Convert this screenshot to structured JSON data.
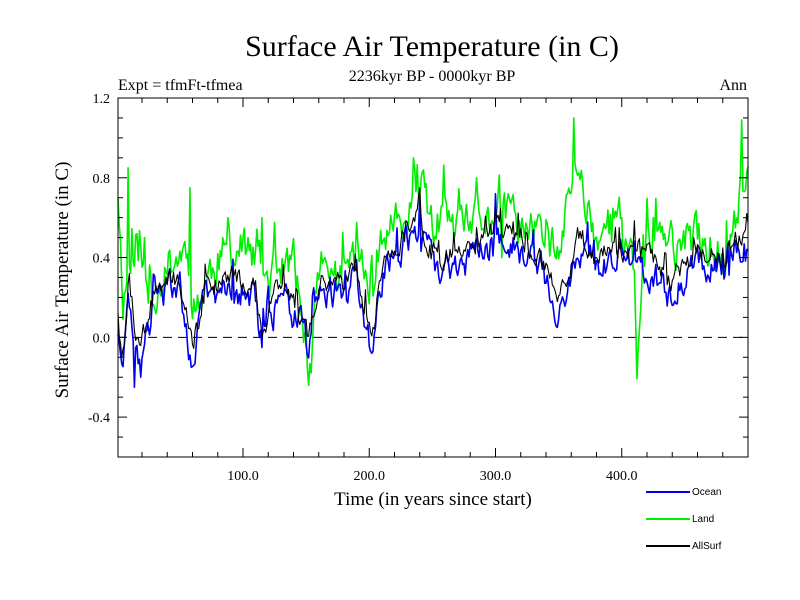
{
  "chart_data": {
    "type": "line",
    "title": "Surface Air Temperature (in C)",
    "subtitle": "2236kyr BP - 0000kyr BP",
    "left_label": "Expt = tfmFt-tfmea",
    "right_label": "Ann",
    "xlabel": "Time (in years since start)",
    "ylabel": "Surface Air Temperature (in C)",
    "xlim": [
      1,
      500
    ],
    "ylim": [
      -0.6,
      1.2
    ],
    "x_ticks": [
      100,
      200,
      300,
      400
    ],
    "x_tick_labels": [
      "100.0",
      "200.0",
      "300.0",
      "400.0"
    ],
    "y_ticks": [
      -0.4,
      0.0,
      0.4,
      0.8,
      1.2
    ],
    "y_tick_labels": [
      "-0.4",
      "0.0",
      "0.4",
      "0.8",
      "1.2"
    ],
    "reference_line": {
      "value": 0.0,
      "style": "dashed"
    },
    "legend_position": "bottom-right",
    "n_points": 500,
    "series": [
      {
        "name": "Land",
        "color": "#00ee00",
        "keypoints": [
          [
            1,
            0.75
          ],
          [
            5,
            0.2
          ],
          [
            15,
            0.5
          ],
          [
            25,
            0.2
          ],
          [
            40,
            0.35
          ],
          [
            55,
            0.45
          ],
          [
            62,
            0.15
          ],
          [
            80,
            0.4
          ],
          [
            100,
            0.45
          ],
          [
            120,
            0.3
          ],
          [
            140,
            0.38
          ],
          [
            150,
            -0.05
          ],
          [
            152,
            -0.3
          ],
          [
            160,
            0.35
          ],
          [
            180,
            0.3
          ],
          [
            190,
            0.45
          ],
          [
            200,
            0.2
          ],
          [
            205,
            0.4
          ],
          [
            220,
            0.6
          ],
          [
            230,
            0.55
          ],
          [
            240,
            0.75
          ],
          [
            250,
            0.55
          ],
          [
            260,
            0.6
          ],
          [
            270,
            0.5
          ],
          [
            280,
            0.55
          ],
          [
            300,
            0.62
          ],
          [
            320,
            0.58
          ],
          [
            340,
            0.5
          ],
          [
            350,
            0.38
          ],
          [
            363,
            0.9
          ],
          [
            380,
            0.5
          ],
          [
            395,
            0.6
          ],
          [
            410,
            0.3
          ],
          [
            412,
            -0.12
          ],
          [
            420,
            0.55
          ],
          [
            440,
            0.45
          ],
          [
            460,
            0.5
          ],
          [
            480,
            0.4
          ],
          [
            490,
            0.6
          ],
          [
            500,
            0.85
          ]
        ],
        "spikes": [
          [
            9,
            0.85
          ],
          [
            22,
            0.5
          ],
          [
            38,
            0.35
          ],
          [
            58,
            0.75
          ],
          [
            88,
            0.6
          ],
          [
            115,
            0.6
          ],
          [
            165,
            0.4
          ],
          [
            235,
            0.9
          ],
          [
            265,
            0.58
          ],
          [
            285,
            0.8
          ],
          [
            305,
            0.4
          ],
          [
            330,
            0.45
          ],
          [
            345,
            0.55
          ],
          [
            362,
            1.1
          ],
          [
            400,
            0.6
          ],
          [
            425,
            0.6
          ],
          [
            470,
            0.5
          ],
          [
            495,
            1.09
          ]
        ],
        "noise": 0.13,
        "seed": 11
      },
      {
        "name": "Ocean",
        "color": "#0000ee",
        "keypoints": [
          [
            1,
            0.05
          ],
          [
            4,
            -0.2
          ],
          [
            10,
            0.1
          ],
          [
            18,
            -0.2
          ],
          [
            30,
            0.2
          ],
          [
            50,
            0.25
          ],
          [
            60,
            -0.12
          ],
          [
            70,
            0.2
          ],
          [
            90,
            0.25
          ],
          [
            110,
            0.2
          ],
          [
            115,
            -0.05
          ],
          [
            130,
            0.2
          ],
          [
            150,
            0.05
          ],
          [
            151,
            -0.03
          ],
          [
            160,
            0.25
          ],
          [
            180,
            0.22
          ],
          [
            190,
            0.3
          ],
          [
            195,
            0.1
          ],
          [
            202,
            -0.05
          ],
          [
            210,
            0.3
          ],
          [
            220,
            0.4
          ],
          [
            240,
            0.55
          ],
          [
            250,
            0.35
          ],
          [
            260,
            0.35
          ],
          [
            280,
            0.4
          ],
          [
            300,
            0.5
          ],
          [
            320,
            0.45
          ],
          [
            340,
            0.3
          ],
          [
            349,
            0.08
          ],
          [
            365,
            0.45
          ],
          [
            380,
            0.35
          ],
          [
            400,
            0.4
          ],
          [
            420,
            0.35
          ],
          [
            440,
            0.2
          ],
          [
            460,
            0.4
          ],
          [
            480,
            0.35
          ],
          [
            500,
            0.5
          ]
        ],
        "spikes": [
          [
            14,
            -0.25
          ],
          [
            61,
            -0.14
          ],
          [
            150,
            -0.04
          ],
          [
            202,
            -0.08
          ],
          [
            240,
            0.72
          ],
          [
            300,
            0.72
          ],
          [
            349,
            0.05
          ]
        ],
        "noise": 0.1,
        "seed": 29
      },
      {
        "name": "AllSurf",
        "color": "#000000",
        "keypoints": [
          [
            1,
            0.15
          ],
          [
            4,
            -0.1
          ],
          [
            10,
            0.2
          ],
          [
            18,
            -0.1
          ],
          [
            30,
            0.25
          ],
          [
            50,
            0.3
          ],
          [
            60,
            -0.05
          ],
          [
            70,
            0.25
          ],
          [
            90,
            0.3
          ],
          [
            110,
            0.28
          ],
          [
            115,
            0.02
          ],
          [
            130,
            0.28
          ],
          [
            150,
            0.1
          ],
          [
            151,
            0.0
          ],
          [
            160,
            0.3
          ],
          [
            180,
            0.28
          ],
          [
            190,
            0.35
          ],
          [
            195,
            0.15
          ],
          [
            202,
            0.0
          ],
          [
            210,
            0.35
          ],
          [
            220,
            0.45
          ],
          [
            240,
            0.6
          ],
          [
            250,
            0.42
          ],
          [
            260,
            0.4
          ],
          [
            280,
            0.45
          ],
          [
            300,
            0.55
          ],
          [
            320,
            0.5
          ],
          [
            340,
            0.36
          ],
          [
            349,
            0.12
          ],
          [
            365,
            0.52
          ],
          [
            380,
            0.4
          ],
          [
            400,
            0.45
          ],
          [
            420,
            0.42
          ],
          [
            440,
            0.28
          ],
          [
            460,
            0.45
          ],
          [
            480,
            0.4
          ],
          [
            500,
            0.55
          ]
        ],
        "spikes": [
          [
            240,
            0.75
          ],
          [
            300,
            0.65
          ]
        ],
        "noise": 0.07,
        "seed": 47
      }
    ]
  },
  "legend": {
    "ocean": "Ocean",
    "land": "Land",
    "allsurf": "AllSurf"
  }
}
